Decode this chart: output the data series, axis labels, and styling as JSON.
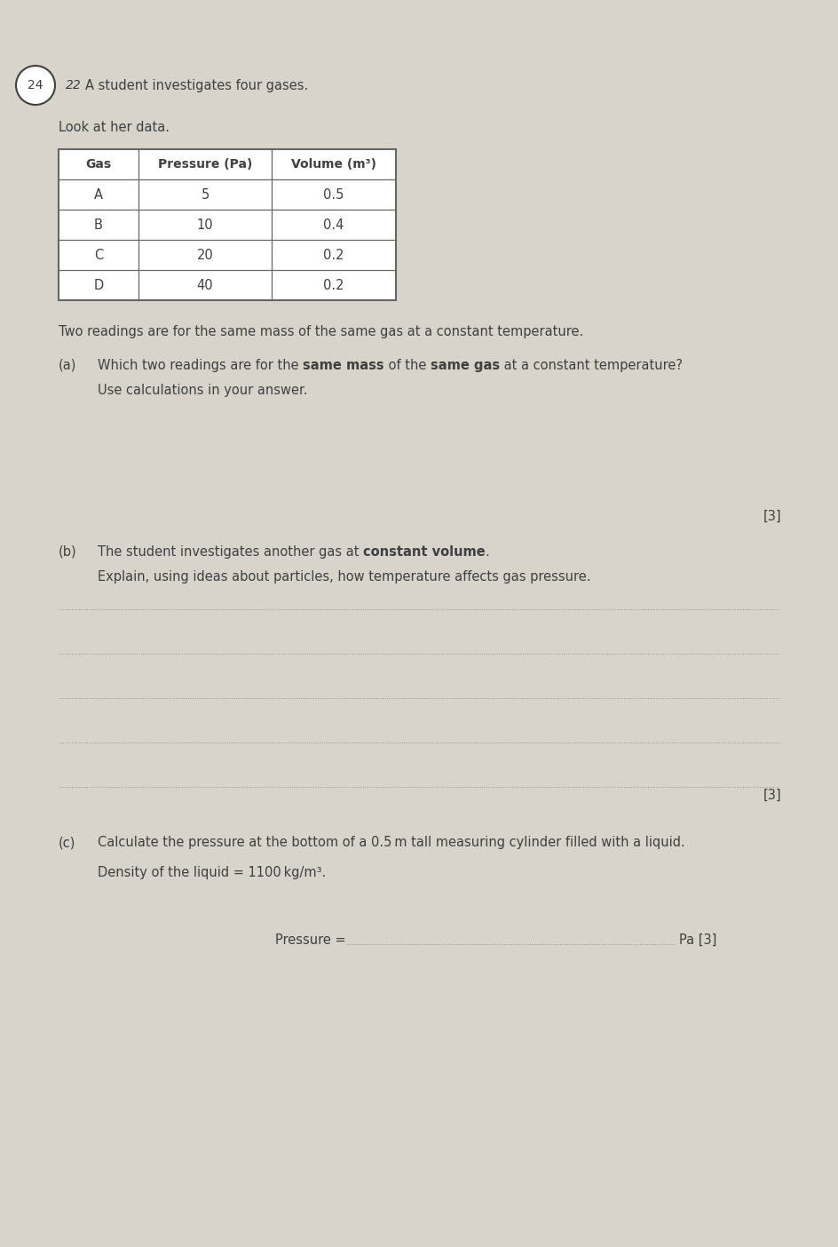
{
  "bg_color": "#d8d4cc",
  "page_color": "#f2efe9",
  "question_number": "22",
  "circle_number": "24",
  "intro_text": "A student investigates four gases.",
  "look_text": "Look at her data.",
  "table_headers": [
    "Gas",
    "Pressure (Pa)",
    "Volume (m³)"
  ],
  "table_rows": [
    [
      "A",
      "5",
      "0.5"
    ],
    [
      "B",
      "10",
      "0.4"
    ],
    [
      "C",
      "20",
      "0.2"
    ],
    [
      "D",
      "40",
      "0.2"
    ]
  ],
  "two_readings_text": "Two readings are for the same mass of the same gas at a constant temperature.",
  "part_a_label": "(a)",
  "part_a_line1_normal1": "Which two readings are for the ",
  "part_a_line1_bold1": "same mass",
  "part_a_line1_normal2": " of the ",
  "part_a_line1_bold2": "same gas",
  "part_a_line1_normal3": " at a constant temperature?",
  "part_a_sub": "Use calculations in your answer.",
  "marks_a": "[3]",
  "part_b_label": "(b)",
  "part_b_line1_normal1": "The student investigates another gas at ",
  "part_b_line1_bold1": "constant volume",
  "part_b_line1_normal2": ".",
  "part_b_sub": "Explain, using ideas about particles, how temperature affects gas pressure.",
  "answer_lines_b": 5,
  "marks_b": "[3]",
  "part_c_label": "(c)",
  "part_c_q": "Calculate the pressure at the bottom of a 0.5 m tall measuring cylinder filled with a liquid.",
  "part_c_density": "Density of the liquid = 1100 kg/m³.",
  "pressure_label": "Pressure = ",
  "pressure_unit": "Pa [3]",
  "font_color": "#404040",
  "dot_line_color": "#999999",
  "table_line_color": "#666666"
}
